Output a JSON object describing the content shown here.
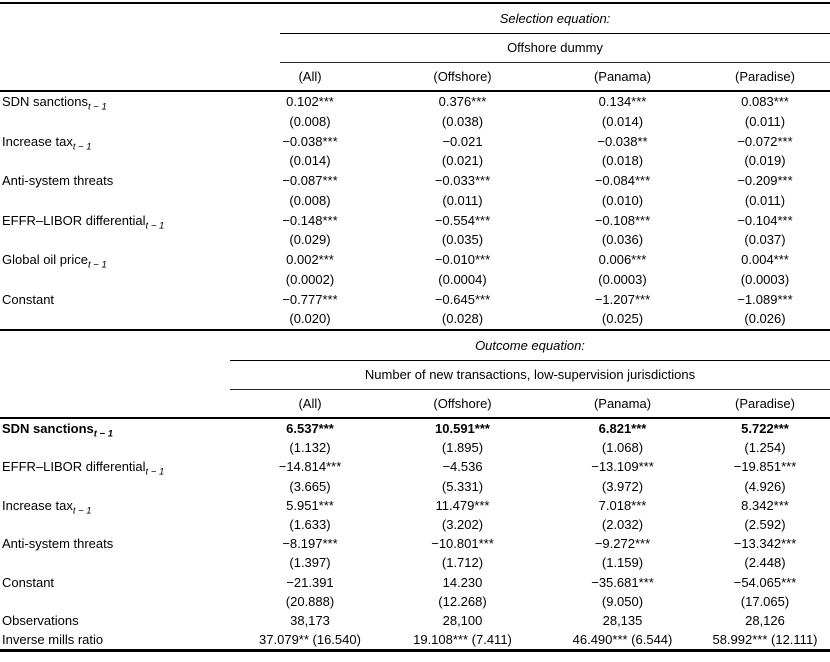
{
  "table": {
    "panels": [
      {
        "equation_label": "Selection equation:",
        "dependent_variable": "Offshore dummy",
        "columns": [
          "(All)",
          "(Offshore)",
          "(Panama)",
          "(Paradise)"
        ],
        "rows": [
          {
            "label": "SDN sanctions",
            "subscript": "t − 1",
            "bold": false,
            "coefficients": [
              "0.102***",
              "0.376***",
              "0.134***",
              "0.083***"
            ],
            "std_errors": [
              "(0.008)",
              "(0.038)",
              "(0.014)",
              "(0.011)"
            ]
          },
          {
            "label": "Increase tax",
            "subscript": "t − 1",
            "bold": false,
            "coefficients": [
              "−0.038***",
              "−0.021",
              "−0.038**",
              "−0.072***"
            ],
            "std_errors": [
              "(0.014)",
              "(0.021)",
              "(0.018)",
              "(0.019)"
            ]
          },
          {
            "label": "Anti-system threats",
            "subscript": "",
            "bold": false,
            "coefficients": [
              "−0.087***",
              "−0.033***",
              "−0.084***",
              "−0.209***"
            ],
            "std_errors": [
              "(0.008)",
              "(0.011)",
              "(0.010)",
              "(0.011)"
            ]
          },
          {
            "label": "EFFR–LIBOR differential",
            "subscript": "t − 1",
            "bold": false,
            "coefficients": [
              "−0.148***",
              "−0.554***",
              "−0.108***",
              "−0.104***"
            ],
            "std_errors": [
              "(0.029)",
              "(0.035)",
              "(0.036)",
              "(0.037)"
            ]
          },
          {
            "label": "Global oil price",
            "subscript": "t − 1",
            "bold": false,
            "coefficients": [
              "0.002***",
              "−0.010***",
              "0.006***",
              "0.004***"
            ],
            "std_errors": [
              "(0.0002)",
              "(0.0004)",
              "(0.0003)",
              "(0.0003)"
            ]
          },
          {
            "label": "Constant",
            "subscript": "",
            "bold": false,
            "coefficients": [
              "−0.777***",
              "−0.645***",
              "−1.207***",
              "−1.089***"
            ],
            "std_errors": [
              "(0.020)",
              "(0.028)",
              "(0.025)",
              "(0.026)"
            ]
          }
        ],
        "stat_rows": []
      },
      {
        "equation_label": "Outcome equation:",
        "dependent_variable": "Number of new transactions, low-supervision jurisdictions",
        "columns": [
          "(All)",
          "(Offshore)",
          "(Panama)",
          "(Paradise)"
        ],
        "rows": [
          {
            "label": "SDN sanctions",
            "subscript": "t − 1",
            "bold": true,
            "coefficients": [
              "6.537***",
              "10.591***",
              "6.821***",
              "5.722***"
            ],
            "std_errors": [
              "(1.132)",
              "(1.895)",
              "(1.068)",
              "(1.254)"
            ]
          },
          {
            "label": "EFFR–LIBOR differential",
            "subscript": "t − 1",
            "bold": false,
            "coefficients": [
              "−14.814***",
              "−4.536",
              "−13.109***",
              "−19.851***"
            ],
            "std_errors": [
              "(3.665)",
              "(5.331)",
              "(3.972)",
              "(4.926)"
            ]
          },
          {
            "label": "Increase tax",
            "subscript": "t − 1",
            "bold": false,
            "coefficients": [
              "5.951***",
              "11.479***",
              "7.018***",
              "8.342***"
            ],
            "std_errors": [
              "(1.633)",
              "(3.202)",
              "(2.032)",
              "(2.592)"
            ]
          },
          {
            "label": "Anti-system threats",
            "subscript": "",
            "bold": false,
            "coefficients": [
              "−8.197***",
              "−10.801***",
              "−9.272***",
              "−13.342***"
            ],
            "std_errors": [
              "(1.397)",
              "(1.712)",
              "(1.159)",
              "(2.448)"
            ]
          },
          {
            "label": "Constant",
            "subscript": "",
            "bold": false,
            "coefficients": [
              "−21.391",
              "14.230",
              "−35.681***",
              "−54.065***"
            ],
            "std_errors": [
              "(20.888)",
              "(12.268)",
              "(9.050)",
              "(17.065)"
            ]
          }
        ],
        "stat_rows": [
          {
            "label": "Observations",
            "values": [
              "38,173",
              "28,100",
              "28,135",
              "28,126"
            ]
          },
          {
            "label": "Inverse mills ratio",
            "values": [
              "37.079** (16.540)",
              "19.108*** (7.411)",
              "46.490*** (6.544)",
              "58.992*** (12.111)"
            ]
          }
        ]
      }
    ]
  }
}
